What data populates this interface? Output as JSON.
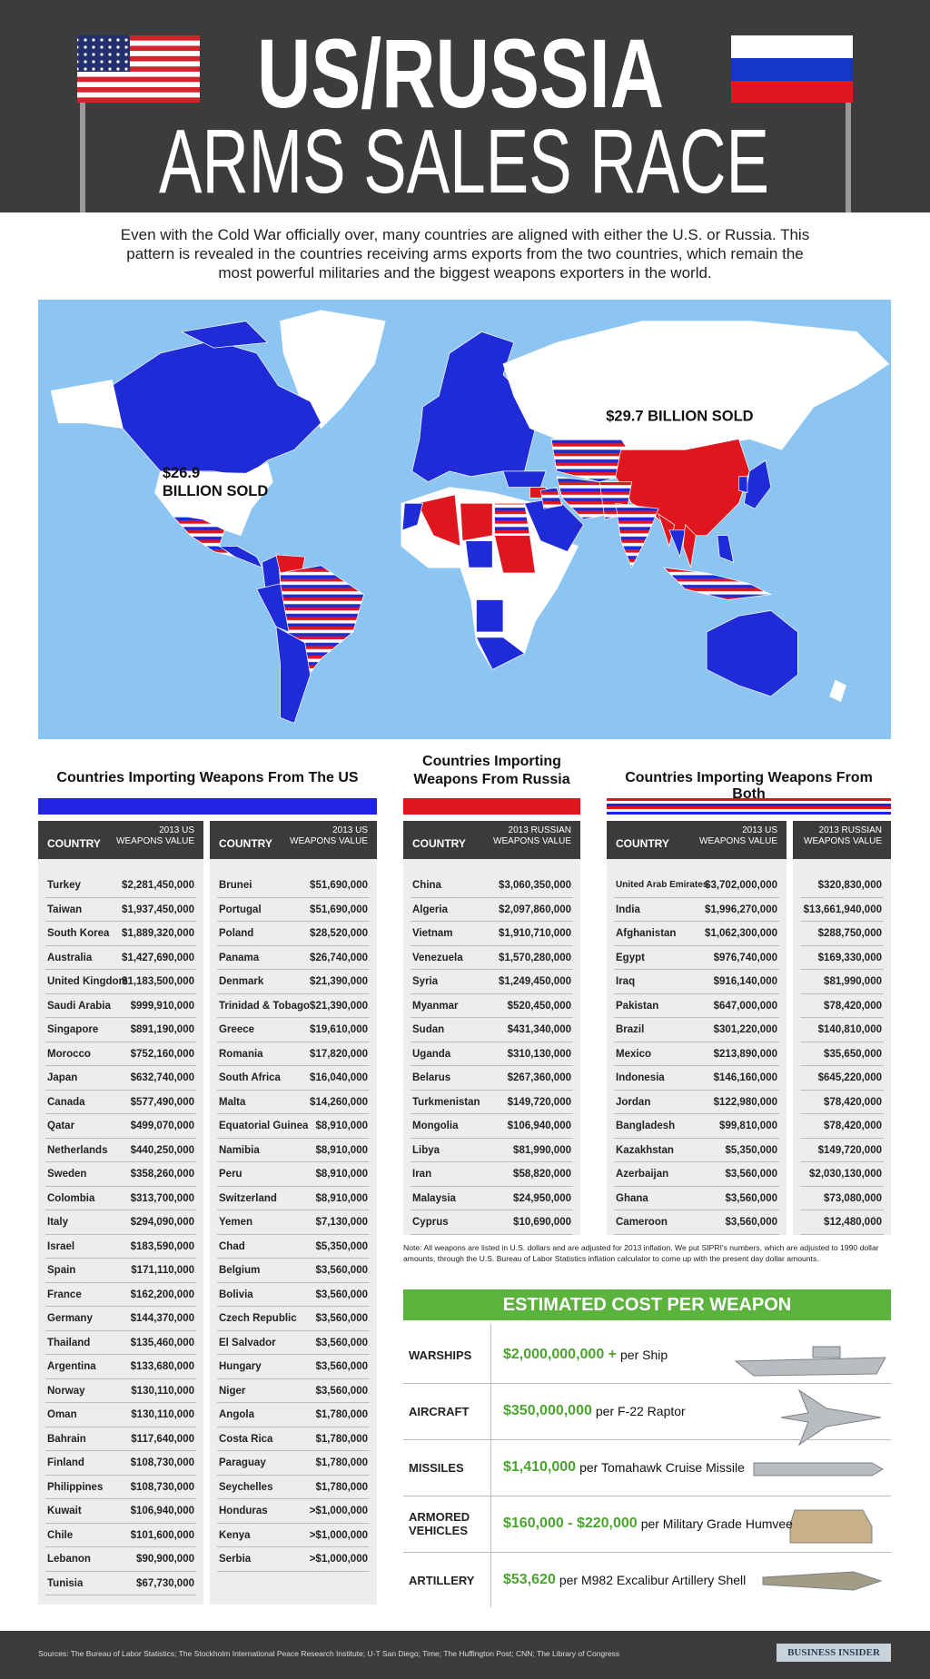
{
  "header": {
    "title_line1": "US/RUSSIA",
    "title_line2": "ARMS SALES RACE"
  },
  "intro": "Even with the Cold War officially over, many countries are aligned with either the U.S. or Russia. This pattern is revealed in the countries receiving arms exports from the two countries, which remain the most powerful militaries and the biggest weapons exporters in the world.",
  "map": {
    "russia_label": "$29.7 BILLION SOLD",
    "us_label": [
      "$26.9",
      "BILLION SOLD"
    ]
  },
  "us_table": {
    "title": "Countries Importing Weapons From The US",
    "col_country": "COUNTRY",
    "col_value": [
      "2013 US",
      "WEAPONS VALUE"
    ],
    "columns": [
      [
        [
          "Turkey",
          "$2,281,450,000"
        ],
        [
          "Taiwan",
          "$1,937,450,000"
        ],
        [
          "South Korea",
          "$1,889,320,000"
        ],
        [
          "Australia",
          "$1,427,690,000"
        ],
        [
          "United Kingdom",
          "$1,183,500,000"
        ],
        [
          "Saudi Arabia",
          "$999,910,000"
        ],
        [
          "Singapore",
          "$891,190,000"
        ],
        [
          "Morocco",
          "$752,160,000"
        ],
        [
          "Japan",
          "$632,740,000"
        ],
        [
          "Canada",
          "$577,490,000"
        ],
        [
          "Qatar",
          "$499,070,000"
        ],
        [
          "Netherlands",
          "$440,250,000"
        ],
        [
          "Sweden",
          "$358,260,000"
        ],
        [
          "Colombia",
          "$313,700,000"
        ],
        [
          "Italy",
          "$294,090,000"
        ],
        [
          "Israel",
          "$183,590,000"
        ],
        [
          "Spain",
          "$171,110,000"
        ],
        [
          "France",
          "$162,200,000"
        ],
        [
          "Germany",
          "$144,370,000"
        ],
        [
          "Thailand",
          "$135,460,000"
        ],
        [
          "Argentina",
          "$133,680,000"
        ],
        [
          "Norway",
          "$130,110,000"
        ],
        [
          "Oman",
          "$130,110,000"
        ],
        [
          "Bahrain",
          "$117,640,000"
        ],
        [
          "Finland",
          "$108,730,000"
        ],
        [
          "Philippines",
          "$108,730,000"
        ],
        [
          "Kuwait",
          "$106,940,000"
        ],
        [
          "Chile",
          "$101,600,000"
        ],
        [
          "Lebanon",
          "$90,900,000"
        ],
        [
          "Tunisia",
          "$67,730,000"
        ]
      ],
      [
        [
          "Brunei",
          "$51,690,000"
        ],
        [
          "Portugal",
          "$51,690,000"
        ],
        [
          "Poland",
          "$28,520,000"
        ],
        [
          "Panama",
          "$26,740,000"
        ],
        [
          "Denmark",
          "$21,390,000"
        ],
        [
          "Trinidad & Tobago",
          "$21,390,000"
        ],
        [
          "Greece",
          "$19,610,000"
        ],
        [
          "Romania",
          "$17,820,000"
        ],
        [
          "South Africa",
          "$16,040,000"
        ],
        [
          "Malta",
          "$14,260,000"
        ],
        [
          "Equatorial Guinea",
          "$8,910,000"
        ],
        [
          "Namibia",
          "$8,910,000"
        ],
        [
          "Peru",
          "$8,910,000"
        ],
        [
          "Switzerland",
          "$8,910,000"
        ],
        [
          "Yemen",
          "$7,130,000"
        ],
        [
          "Chad",
          "$5,350,000"
        ],
        [
          "Belgium",
          "$3,560,000"
        ],
        [
          "Bolivia",
          "$3,560,000"
        ],
        [
          "Czech Republic",
          "$3,560,000"
        ],
        [
          "El Salvador",
          "$3,560,000"
        ],
        [
          "Hungary",
          "$3,560,000"
        ],
        [
          "Niger",
          "$3,560,000"
        ],
        [
          "Angola",
          "$1,780,000"
        ],
        [
          "Costa Rica",
          "$1,780,000"
        ],
        [
          "Paraguay",
          "$1,780,000"
        ],
        [
          "Seychelles",
          "$1,780,000"
        ],
        [
          "Honduras",
          ">$1,000,000"
        ],
        [
          "Kenya",
          ">$1,000,000"
        ],
        [
          "Serbia",
          ">$1,000,000"
        ]
      ]
    ]
  },
  "russia_table": {
    "title": [
      "Countries Importing",
      "Weapons From Russia"
    ],
    "col_country": "COUNTRY",
    "col_value": [
      "2013 RUSSIAN",
      "WEAPONS VALUE"
    ],
    "rows": [
      [
        "China",
        "$3,060,350,000"
      ],
      [
        "Algeria",
        "$2,097,860,000"
      ],
      [
        "Vietnam",
        "$1,910,710,000"
      ],
      [
        "Venezuela",
        "$1,570,280,000"
      ],
      [
        "Syria",
        "$1,249,450,000"
      ],
      [
        "Myanmar",
        "$520,450,000"
      ],
      [
        "Sudan",
        "$431,340,000"
      ],
      [
        "Uganda",
        "$310,130,000"
      ],
      [
        "Belarus",
        "$267,360,000"
      ],
      [
        "Turkmenistan",
        "$149,720,000"
      ],
      [
        "Mongolia",
        "$106,940,000"
      ],
      [
        "Libya",
        "$81,990,000"
      ],
      [
        "Iran",
        "$58,820,000"
      ],
      [
        "Malaysia",
        "$24,950,000"
      ],
      [
        "Cyprus",
        "$10,690,000"
      ]
    ]
  },
  "both_table": {
    "title": "Countries Importing Weapons From Both",
    "col_country": "COUNTRY",
    "col_us": [
      "2013 US",
      "WEAPONS VALUE"
    ],
    "col_russia": [
      "2013 RUSSIAN",
      "WEAPONS VALUE"
    ],
    "rows": [
      [
        "United Arab Emirates",
        "$3,702,000,000",
        "$320,830,000"
      ],
      [
        "India",
        "$1,996,270,000",
        "$13,661,940,000"
      ],
      [
        "Afghanistan",
        "$1,062,300,000",
        "$288,750,000"
      ],
      [
        "Egypt",
        "$976,740,000",
        "$169,330,000"
      ],
      [
        "Iraq",
        "$916,140,000",
        "$81,990,000"
      ],
      [
        "Pakistan",
        "$647,000,000",
        "$78,420,000"
      ],
      [
        "Brazil",
        "$301,220,000",
        "$140,810,000"
      ],
      [
        "Mexico",
        "$213,890,000",
        "$35,650,000"
      ],
      [
        "Indonesia",
        "$146,160,000",
        "$645,220,000"
      ],
      [
        "Jordan",
        "$122,980,000",
        "$78,420,000"
      ],
      [
        "Bangladesh",
        "$99,810,000",
        "$78,420,000"
      ],
      [
        "Kazakhstan",
        "$5,350,000",
        "$149,720,000"
      ],
      [
        "Azerbaijan",
        "$3,560,000",
        "$2,030,130,000"
      ],
      [
        "Ghana",
        "$3,560,000",
        "$73,080,000"
      ],
      [
        "Cameroon",
        "$3,560,000",
        "$12,480,000"
      ]
    ]
  },
  "note": "Note: All weapons are listed in U.S. dollars and are adjusted for 2013 inflation. We put SIPRI's numbers, which are adjusted to 1990 dollar amounts, through the U.S. Bureau of Labor Statistics inflation calculator to come up with the present day dollar amounts.",
  "cost": {
    "title": "ESTIMATED COST PER WEAPON",
    "rows": [
      {
        "category": "WARSHIPS",
        "amount": "$2,000,000,000 +",
        "unit": "per Ship"
      },
      {
        "category": "AIRCRAFT",
        "amount": "$350,000,000",
        "unit": "per F-22 Raptor"
      },
      {
        "category": "MISSILES",
        "amount": "$1,410,000",
        "unit": "per Tomahawk Cruise Missile"
      },
      {
        "category": "ARMORED VEHICLES",
        "amount": "$160,000 - $220,000",
        "unit": "per Military Grade Humvee"
      },
      {
        "category": "ARTILLERY",
        "amount": "$53,620",
        "unit": "per M982 Excalibur Artillery Shell"
      }
    ]
  },
  "footer": {
    "sources": "Sources: The Bureau of Labor Statistics; The Stockholm International Peace Research Institute; U-T San Diego; Time; The Huffington Post; CNN; The Library of Congress",
    "brand": "BUSINESS INSIDER"
  }
}
